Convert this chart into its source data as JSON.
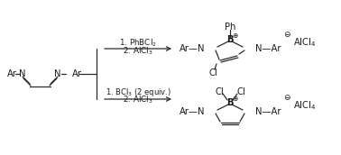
{
  "bg_color": "#ffffff",
  "line_color": "#2a2a2a",
  "text_color": "#1a1a1a",
  "fig_width": 3.78,
  "fig_height": 1.72,
  "dpi": 100,
  "reaction1_reagents": "1. PhBCl$_2$",
  "reaction1_reagents2": "2. AlCl$_3$",
  "reaction2_reagents": "1. BCl$_3$ (2 equiv.)",
  "reaction2_reagents2": "2. AlCl$_3$"
}
